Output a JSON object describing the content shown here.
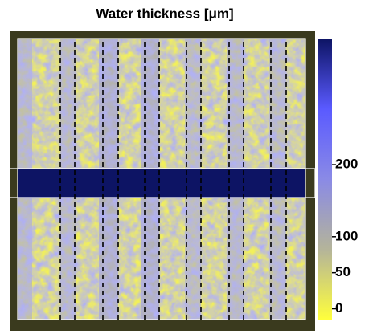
{
  "chart_data": {
    "type": "heatmap-image",
    "title": "Water thickness [μm]",
    "colorbar": {
      "clim": [
        -15,
        375
      ],
      "ticks": [
        0,
        50,
        100,
        200
      ],
      "colors": [
        "#ffff3c",
        "#b4b49a",
        "#8a8ae6",
        "#5a5aff",
        "#0d1464"
      ]
    }
  }
}
